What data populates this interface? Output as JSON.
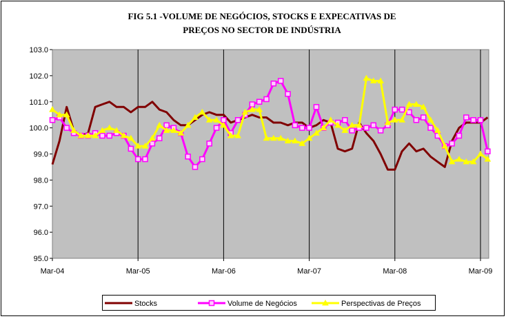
{
  "chart_data": {
    "type": "line",
    "title": "FIG 5.1 -VOLUME DE NEGÓCIOS, STOCKS E EXPECATIVAS DE PREÇOS  NO SECTOR DE INDÚSTRIA",
    "categories": [
      "Mar-04",
      null,
      null,
      null,
      null,
      null,
      null,
      null,
      null,
      null,
      null,
      null,
      "Mar-05",
      null,
      null,
      null,
      null,
      null,
      null,
      null,
      null,
      null,
      null,
      null,
      "Mar-06",
      null,
      null,
      null,
      null,
      null,
      null,
      null,
      null,
      null,
      null,
      null,
      "Mar-07",
      null,
      null,
      null,
      null,
      null,
      null,
      null,
      null,
      null,
      null,
      null,
      "Mar-08",
      null,
      null,
      null,
      null,
      null,
      null,
      null,
      null,
      null,
      null,
      null,
      "Mar-09",
      null
    ],
    "series": [
      {
        "name": "Stocks",
        "color": "#800000",
        "marker": "none",
        "values": [
          98.6,
          99.5,
          100.8,
          99.9,
          99.7,
          99.8,
          100.8,
          100.9,
          101.0,
          100.8,
          100.8,
          100.6,
          100.8,
          100.8,
          101.0,
          100.7,
          100.6,
          100.3,
          100.1,
          100.1,
          100.3,
          100.5,
          100.6,
          100.5,
          100.5,
          100.2,
          100.3,
          100.4,
          100.5,
          100.4,
          100.4,
          100.2,
          100.2,
          100.1,
          100.2,
          100.2,
          100.0,
          100.1,
          100.3,
          100.2,
          99.2,
          99.1,
          99.2,
          100.2,
          99.8,
          99.5,
          99.0,
          98.4,
          98.4,
          99.1,
          99.4,
          99.1,
          99.2,
          98.9,
          98.7,
          98.5,
          99.5,
          100.0,
          100.2,
          100.2,
          100.2,
          100.4
        ]
      },
      {
        "name": "Volume de Negócios",
        "color": "#ff00ff",
        "marker": "square",
        "values": [
          100.3,
          100.4,
          100.0,
          99.8,
          99.7,
          99.7,
          99.8,
          99.7,
          99.7,
          99.8,
          99.7,
          99.2,
          98.8,
          98.8,
          99.4,
          99.6,
          100.1,
          100.0,
          99.8,
          98.9,
          98.5,
          98.8,
          99.4,
          100.0,
          100.3,
          99.8,
          100.3,
          100.5,
          100.9,
          101.0,
          101.1,
          101.7,
          101.8,
          101.3,
          100.1,
          100.0,
          100.0,
          100.8,
          100.0,
          100.2,
          100.2,
          100.3,
          99.9,
          100.0,
          100.0,
          100.1,
          99.9,
          100.1,
          100.7,
          100.7,
          100.6,
          100.3,
          100.4,
          100.0,
          99.7,
          99.3,
          99.4,
          99.7,
          100.4,
          100.3,
          100.3,
          99.1
        ]
      },
      {
        "name": "Perspectivas de Preços",
        "color": "#ffff00",
        "marker": "triangle",
        "values": [
          100.7,
          100.5,
          100.5,
          99.9,
          99.7,
          99.7,
          99.7,
          99.9,
          100.0,
          99.9,
          99.7,
          99.6,
          99.3,
          99.3,
          99.6,
          100.1,
          99.9,
          99.9,
          99.8,
          100.1,
          100.4,
          100.6,
          100.3,
          100.3,
          100.1,
          99.7,
          99.7,
          100.6,
          100.7,
          100.7,
          99.6,
          99.6,
          99.6,
          99.5,
          99.5,
          99.4,
          99.6,
          99.8,
          100.0,
          100.3,
          100.1,
          99.9,
          100.1,
          100.1,
          101.9,
          101.8,
          101.8,
          100.2,
          100.3,
          100.3,
          100.9,
          100.9,
          100.8,
          100.3,
          99.9,
          99.3,
          98.7,
          98.8,
          98.7,
          98.7,
          99.0,
          98.8
        ]
      }
    ],
    "ylim": [
      95,
      103
    ],
    "yticks": [
      {
        "value": 95,
        "label": "95.0"
      },
      {
        "value": 96,
        "label": "96.0"
      },
      {
        "value": 97,
        "label": "97.0"
      },
      {
        "value": 98,
        "label": "98.0"
      },
      {
        "value": 99,
        "label": "99.0"
      },
      {
        "value": 100,
        "label": "100.0"
      },
      {
        "value": 101,
        "label": "101.0"
      },
      {
        "value": 102,
        "label": "102.0"
      },
      {
        "value": 103,
        "label": "103.0"
      }
    ],
    "grid": "x",
    "legend": "bottom"
  }
}
